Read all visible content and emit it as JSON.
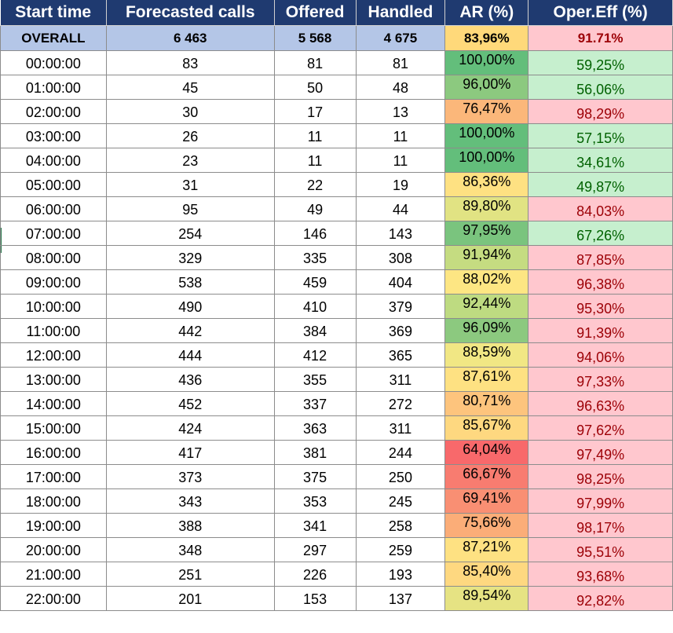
{
  "table": {
    "headers": [
      "Start time",
      "Forecasted calls",
      "Offered",
      "Handled",
      "AR (%)",
      "Oper.Eff (%)"
    ],
    "overall": {
      "label": "OVERALL",
      "forecasted": "6 463",
      "offered": "5 568",
      "handled": "4 675",
      "ar": "83,96%",
      "eff": "91.71%",
      "ar_color": "#ffd97a",
      "eff_color": "#ffc7ce"
    },
    "rows": [
      {
        "time": "00:00:00",
        "forecasted": "83",
        "offered": "81",
        "handled": "81",
        "ar": "100,00%",
        "eff": "59,25%",
        "ar_color": "#63be7b",
        "eff_status": "good"
      },
      {
        "time": "01:00:00",
        "forecasted": "45",
        "offered": "50",
        "handled": "48",
        "ar": "96,00%",
        "eff": "56,06%",
        "ar_color": "#8cc97f",
        "eff_status": "good"
      },
      {
        "time": "02:00:00",
        "forecasted": "30",
        "offered": "17",
        "handled": "13",
        "ar": "76,47%",
        "eff": "98,29%",
        "ar_color": "#fbb77a",
        "eff_status": "bad"
      },
      {
        "time": "03:00:00",
        "forecasted": "26",
        "offered": "11",
        "handled": "11",
        "ar": "100,00%",
        "eff": "57,15%",
        "ar_color": "#63be7b",
        "eff_status": "good"
      },
      {
        "time": "04:00:00",
        "forecasted": "23",
        "offered": "11",
        "handled": "11",
        "ar": "100,00%",
        "eff": "34,61%",
        "ar_color": "#63be7b",
        "eff_status": "good"
      },
      {
        "time": "05:00:00",
        "forecasted": "31",
        "offered": "22",
        "handled": "19",
        "ar": "86,36%",
        "eff": "49,87%",
        "ar_color": "#fee182",
        "eff_status": "good"
      },
      {
        "time": "06:00:00",
        "forecasted": "95",
        "offered": "49",
        "handled": "44",
        "ar": "89,80%",
        "eff": "84,03%",
        "ar_color": "#e1e383",
        "eff_status": "bad"
      },
      {
        "time": "07:00:00",
        "forecasted": "254",
        "offered": "146",
        "handled": "143",
        "ar": "97,95%",
        "eff": "67,26%",
        "ar_color": "#7ac47e",
        "eff_status": "good"
      },
      {
        "time": "08:00:00",
        "forecasted": "329",
        "offered": "335",
        "handled": "308",
        "ar": "91,94%",
        "eff": "87,85%",
        "ar_color": "#c5dc81",
        "eff_status": "bad"
      },
      {
        "time": "09:00:00",
        "forecasted": "538",
        "offered": "459",
        "handled": "404",
        "ar": "88,02%",
        "eff": "96,38%",
        "ar_color": "#fde683",
        "eff_status": "bad"
      },
      {
        "time": "10:00:00",
        "forecasted": "490",
        "offered": "410",
        "handled": "379",
        "ar": "92,44%",
        "eff": "95,30%",
        "ar_color": "#bedb81",
        "eff_status": "bad"
      },
      {
        "time": "11:00:00",
        "forecasted": "442",
        "offered": "384",
        "handled": "369",
        "ar": "96,09%",
        "eff": "91,39%",
        "ar_color": "#8cc97f",
        "eff_status": "bad"
      },
      {
        "time": "12:00:00",
        "forecasted": "444",
        "offered": "412",
        "handled": "365",
        "ar": "88,59%",
        "eff": "94,06%",
        "ar_color": "#f1e784",
        "eff_status": "bad"
      },
      {
        "time": "13:00:00",
        "forecasted": "436",
        "offered": "355",
        "handled": "311",
        "ar": "87,61%",
        "eff": "97,33%",
        "ar_color": "#fee182",
        "eff_status": "bad"
      },
      {
        "time": "14:00:00",
        "forecasted": "452",
        "offered": "337",
        "handled": "272",
        "ar": "80,71%",
        "eff": "96,63%",
        "ar_color": "#fdc47d",
        "eff_status": "bad"
      },
      {
        "time": "15:00:00",
        "forecasted": "424",
        "offered": "363",
        "handled": "311",
        "ar": "85,67%",
        "eff": "97,62%",
        "ar_color": "#fed880",
        "eff_status": "bad"
      },
      {
        "time": "16:00:00",
        "forecasted": "417",
        "offered": "381",
        "handled": "244",
        "ar": "64,04%",
        "eff": "97,49%",
        "ar_color": "#f8696b",
        "eff_status": "bad"
      },
      {
        "time": "17:00:00",
        "forecasted": "373",
        "offered": "375",
        "handled": "250",
        "ar": "66,67%",
        "eff": "98,25%",
        "ar_color": "#f87c70",
        "eff_status": "bad"
      },
      {
        "time": "18:00:00",
        "forecasted": "343",
        "offered": "353",
        "handled": "245",
        "ar": "69,41%",
        "eff": "97,99%",
        "ar_color": "#f98f73",
        "eff_status": "bad"
      },
      {
        "time": "19:00:00",
        "forecasted": "388",
        "offered": "341",
        "handled": "258",
        "ar": "75,66%",
        "eff": "98,17%",
        "ar_color": "#fbad78",
        "eff_status": "bad"
      },
      {
        "time": "20:00:00",
        "forecasted": "348",
        "offered": "297",
        "handled": "259",
        "ar": "87,21%",
        "eff": "95,51%",
        "ar_color": "#fee182",
        "eff_status": "bad"
      },
      {
        "time": "21:00:00",
        "forecasted": "251",
        "offered": "226",
        "handled": "193",
        "ar": "85,40%",
        "eff": "93,68%",
        "ar_color": "#fed880",
        "eff_status": "bad"
      },
      {
        "time": "22:00:00",
        "forecasted": "201",
        "offered": "153",
        "handled": "137",
        "ar": "89,54%",
        "eff": "92,82%",
        "ar_color": "#e6e383",
        "eff_status": "bad"
      }
    ],
    "eff_colors": {
      "good_bg": "#c6efce",
      "good_text": "#006100",
      "bad_bg": "#ffc7ce",
      "bad_text": "#9c0006"
    }
  }
}
